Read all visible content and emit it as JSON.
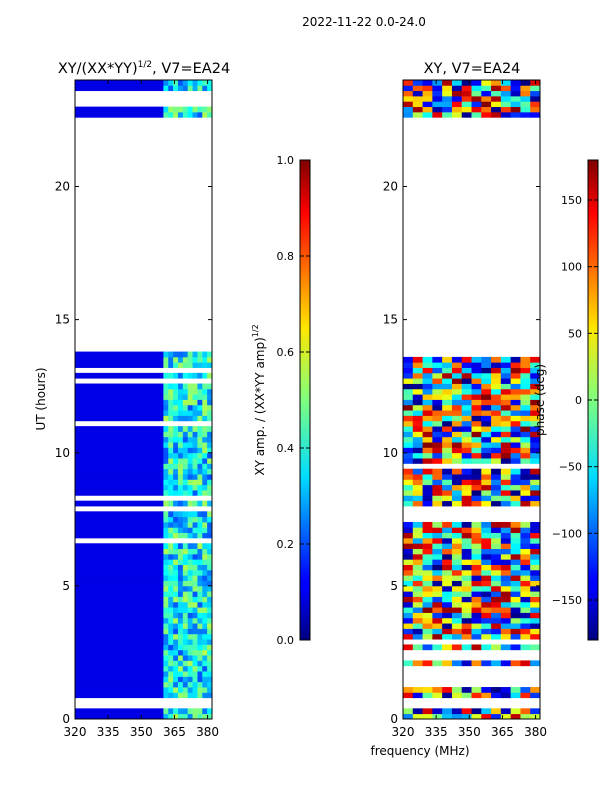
{
  "figure": {
    "suptitle": "2022-11-22 0.0-24.0",
    "xlabel": "frequency (MHz)"
  },
  "chart_data": [
    {
      "type": "heatmap",
      "title": "XY/(XX*YY)^{1/2}, V7=EA24",
      "title_main": "XY/(XX*YY)",
      "title_exp": "1/2",
      "title_tail": ", V7=EA24",
      "xlabel": "",
      "ylabel": "UT (hours)",
      "xlim": [
        320,
        382
      ],
      "ylim": [
        0,
        24
      ],
      "xticks": [
        320,
        335,
        350,
        365,
        380
      ],
      "yticks": [
        0,
        5,
        10,
        15,
        20
      ],
      "colormap": "jet",
      "data_gaps_hours": [
        [
          0.4,
          0.75
        ],
        [
          13.8,
          22.6
        ],
        [
          23.4,
          23.5
        ]
      ],
      "bright_band_mhz": [
        360,
        380
      ],
      "colorbar": {
        "label": "XY amp. / (XX*YY amp)^{1/2}",
        "label_main": "XY amp. / (XX*YY amp)",
        "label_exp": "1/2",
        "range": [
          0.0,
          1.0
        ],
        "ticks": [
          "0.0",
          "0.2",
          "0.4",
          "0.6",
          "0.8",
          "1.0"
        ]
      }
    },
    {
      "type": "heatmap",
      "title": "XY, V7=EA24",
      "xlabel": "frequency (MHz)",
      "ylabel": "",
      "xlim": [
        320,
        382
      ],
      "ylim": [
        0,
        24
      ],
      "xticks": [
        320,
        335,
        350,
        365,
        380
      ],
      "yticks": [
        0,
        5,
        10,
        15,
        20
      ],
      "colormap": "jet",
      "data_gaps_hours": [
        [
          0.4,
          0.75
        ],
        [
          13.8,
          22.6
        ]
      ],
      "colorbar": {
        "label": "phase (deg)",
        "range": [
          -180,
          180
        ],
        "ticks": [
          "-150",
          "-100",
          "-50",
          "0",
          "50",
          "100",
          "150"
        ]
      }
    }
  ]
}
